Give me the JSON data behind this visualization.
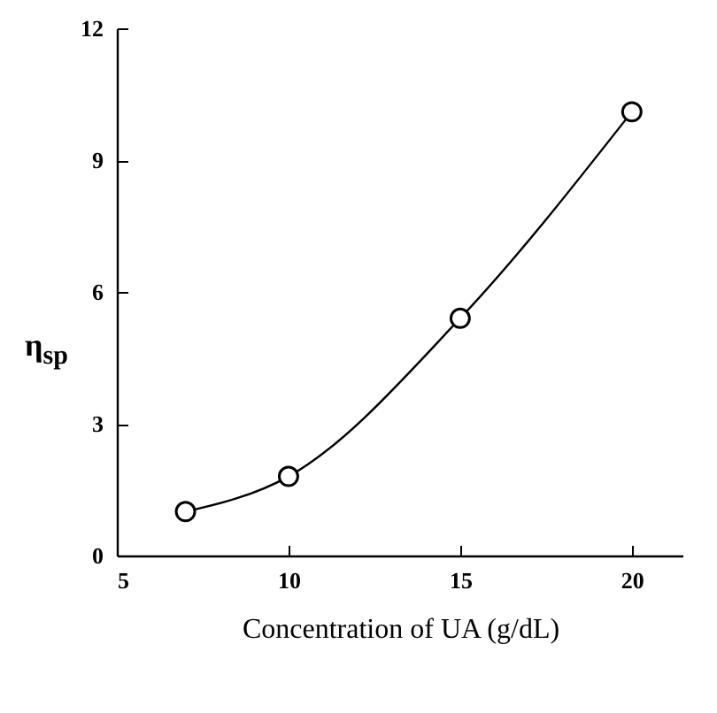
{
  "chart_data": {
    "type": "line",
    "xlabel": "Concentration of UA (g/dL)",
    "ylabel": "η$_{sp}$",
    "x": [
      7,
      10,
      15,
      20
    ],
    "series": [
      {
        "color": "#000000",
        "values": [
          1.0,
          1.8,
          5.4,
          10.1
        ]
      }
    ],
    "xlim": [
      5,
      21.5
    ],
    "xticks": [
      5,
      10,
      15,
      20
    ],
    "ylim": [
      0,
      12
    ],
    "yticks": [
      0,
      3,
      6,
      9,
      12
    ],
    "marker": "circle",
    "line_style": "solid",
    "grid": false
  }
}
